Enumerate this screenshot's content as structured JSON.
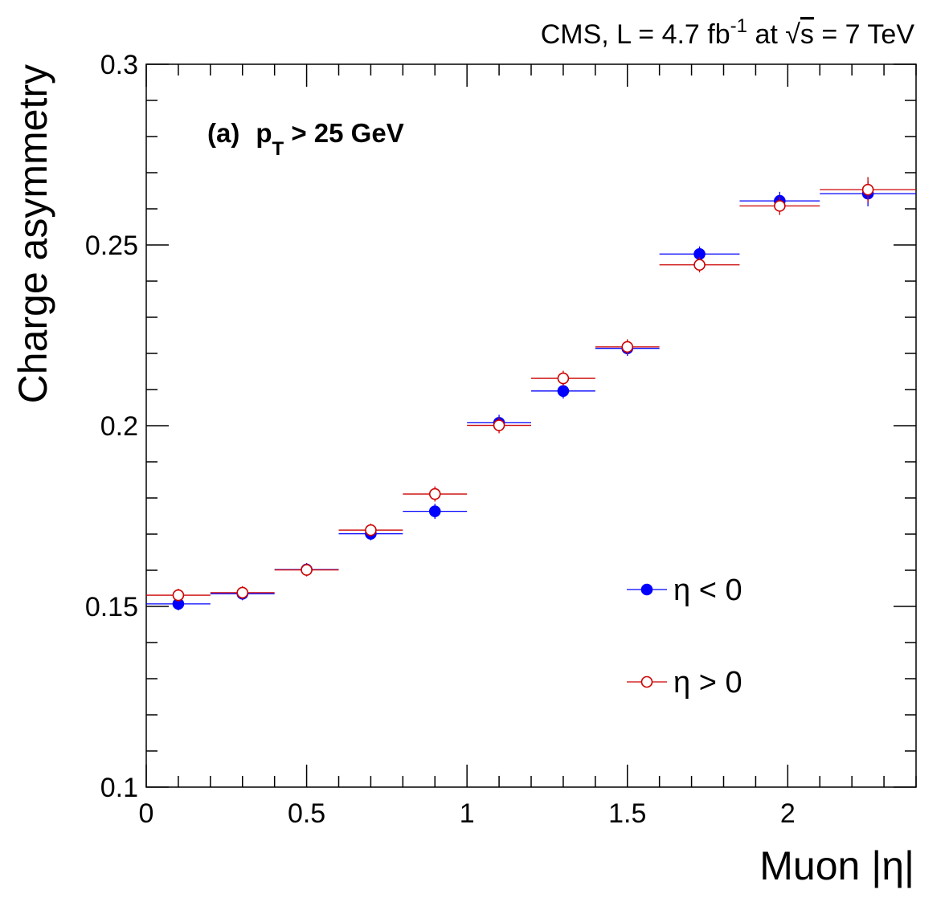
{
  "chart_data": {
    "type": "scatter",
    "title": "",
    "header": {
      "prefix": "CMS,  L = 4.7 fb",
      "lumi_exp": "-1",
      "mid": " at ",
      "sqrt": "√",
      "s_text": "s",
      "suffix": " = 7 TeV"
    },
    "annotation": {
      "label": "(a)",
      "p": "p",
      "p_sub": "T",
      "cut": " > 25 GeV"
    },
    "xlabel": "Muon |η|",
    "ylabel": "Charge asymmetry",
    "xlim": [
      0,
      2.4
    ],
    "ylim": [
      0.1,
      0.3
    ],
    "x_ticks": [
      0,
      0.5,
      1,
      1.5,
      2
    ],
    "x_tick_labels": [
      "0",
      "0.5",
      "1",
      "1.5",
      "2"
    ],
    "y_ticks": [
      0.1,
      0.15,
      0.2,
      0.25,
      0.3
    ],
    "y_tick_labels": [
      "0.1",
      "0.15",
      "0.2",
      "0.25",
      "0.3"
    ],
    "grid": false,
    "legend_position": "right",
    "series": [
      {
        "name": "η < 0",
        "marker": "filled-circle",
        "color": "#0000ff",
        "points": [
          {
            "x": 0.1,
            "xlo": 0.0,
            "xhi": 0.2,
            "y": 0.1507,
            "err": 0.0018
          },
          {
            "x": 0.3,
            "xlo": 0.2,
            "xhi": 0.4,
            "y": 0.1535,
            "err": 0.0018
          },
          {
            "x": 0.5,
            "xlo": 0.4,
            "xhi": 0.6,
            "y": 0.1602,
            "err": 0.0018
          },
          {
            "x": 0.7,
            "xlo": 0.6,
            "xhi": 0.8,
            "y": 0.1701,
            "err": 0.0018
          },
          {
            "x": 0.9,
            "xlo": 0.8,
            "xhi": 1.0,
            "y": 0.1763,
            "err": 0.0021
          },
          {
            "x": 1.1,
            "xlo": 1.0,
            "xhi": 1.2,
            "y": 0.2008,
            "err": 0.0022
          },
          {
            "x": 1.3,
            "xlo": 1.2,
            "xhi": 1.4,
            "y": 0.2096,
            "err": 0.0021
          },
          {
            "x": 1.5,
            "xlo": 1.4,
            "xhi": 1.6,
            "y": 0.2214,
            "err": 0.0021
          },
          {
            "x": 1.725,
            "xlo": 1.6,
            "xhi": 1.85,
            "y": 0.2475,
            "err": 0.0021
          },
          {
            "x": 1.975,
            "xlo": 1.85,
            "xhi": 2.1,
            "y": 0.2622,
            "err": 0.0025
          },
          {
            "x": 2.25,
            "xlo": 2.1,
            "xhi": 2.4,
            "y": 0.2642,
            "err": 0.0035
          }
        ]
      },
      {
        "name": "η > 0",
        "marker": "open-circle",
        "color": "#cc0000",
        "points": [
          {
            "x": 0.1,
            "xlo": 0.0,
            "xhi": 0.2,
            "y": 0.1531,
            "err": 0.0018
          },
          {
            "x": 0.3,
            "xlo": 0.2,
            "xhi": 0.4,
            "y": 0.1538,
            "err": 0.0018
          },
          {
            "x": 0.5,
            "xlo": 0.4,
            "xhi": 0.6,
            "y": 0.1601,
            "err": 0.0018
          },
          {
            "x": 0.7,
            "xlo": 0.6,
            "xhi": 0.8,
            "y": 0.1711,
            "err": 0.0018
          },
          {
            "x": 0.9,
            "xlo": 0.8,
            "xhi": 1.0,
            "y": 0.1811,
            "err": 0.0021
          },
          {
            "x": 1.1,
            "xlo": 1.0,
            "xhi": 1.2,
            "y": 0.2001,
            "err": 0.0022
          },
          {
            "x": 1.3,
            "xlo": 1.2,
            "xhi": 1.4,
            "y": 0.2131,
            "err": 0.0021
          },
          {
            "x": 1.5,
            "xlo": 1.4,
            "xhi": 1.6,
            "y": 0.2218,
            "err": 0.0021
          },
          {
            "x": 1.725,
            "xlo": 1.6,
            "xhi": 1.85,
            "y": 0.2445,
            "err": 0.0021
          },
          {
            "x": 1.975,
            "xlo": 1.85,
            "xhi": 2.1,
            "y": 0.2608,
            "err": 0.0025
          },
          {
            "x": 2.25,
            "xlo": 2.1,
            "xhi": 2.4,
            "y": 0.2653,
            "err": 0.0035
          }
        ]
      }
    ]
  }
}
